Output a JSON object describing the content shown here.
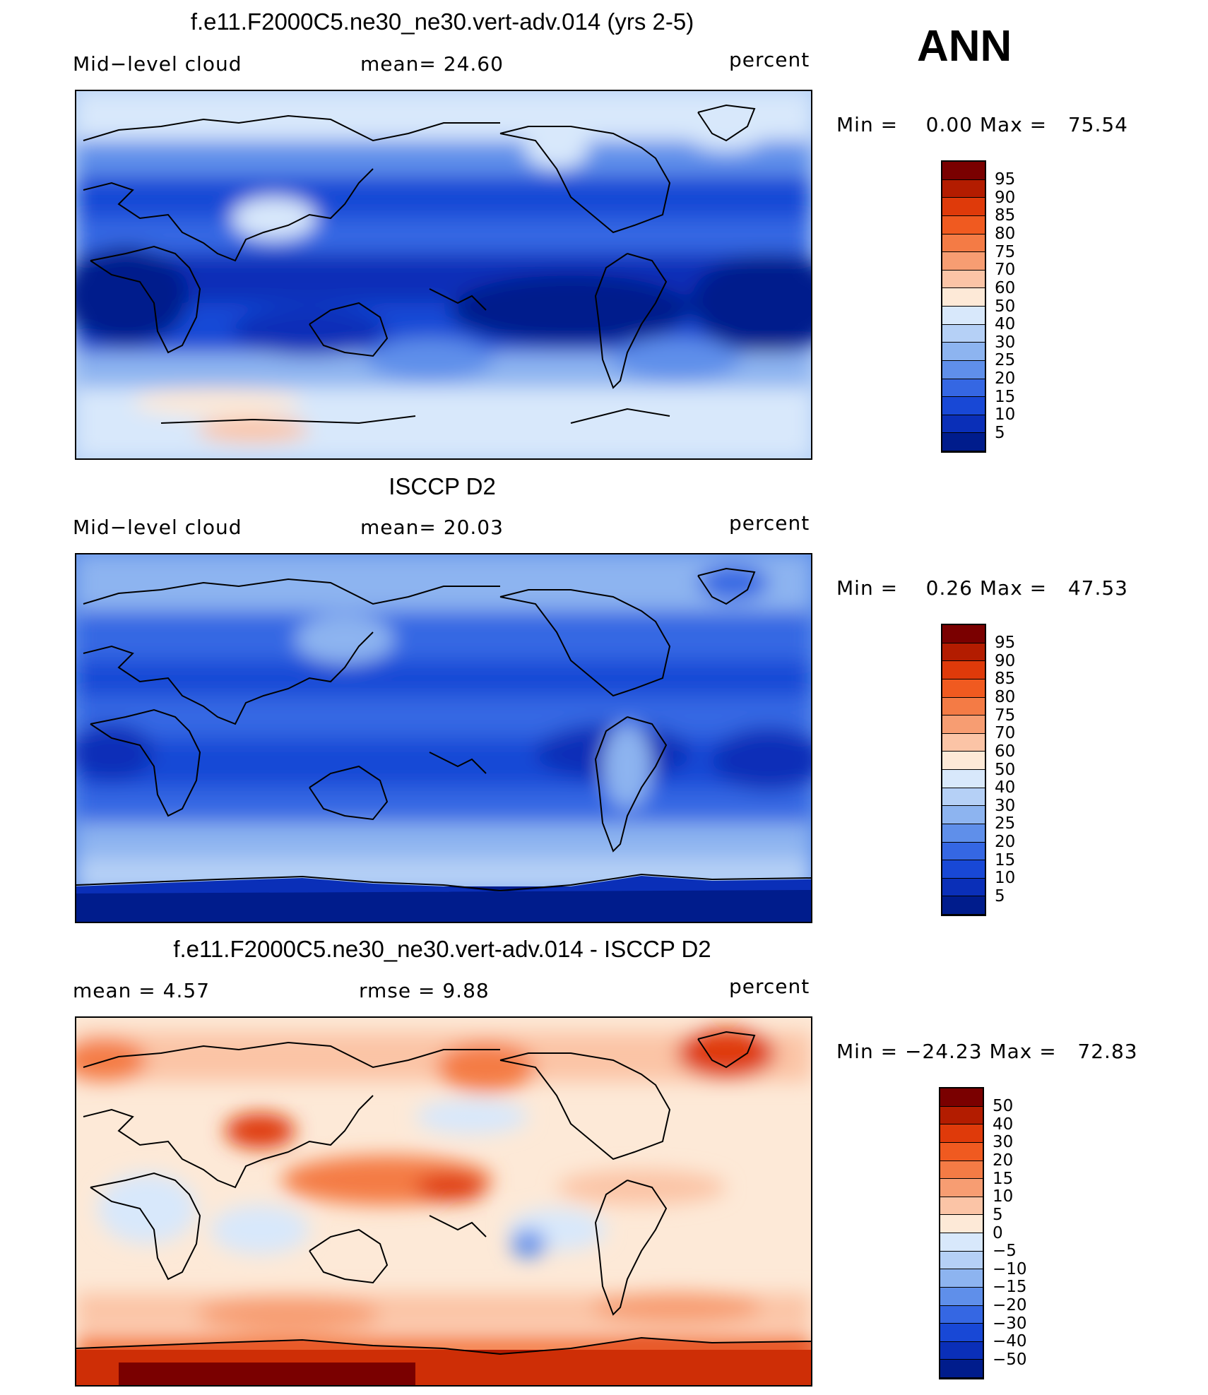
{
  "season": "ANN",
  "panels": [
    {
      "id": "model",
      "title": "f.e11.F2000C5.ne30_ne30.vert-adv.014 (yrs 2-5)",
      "left_label": "Mid−level cloud",
      "center_label": "mean=   24.60",
      "right_label": "percent",
      "minmax": "Min =    0.00 Max =   75.54"
    },
    {
      "id": "obs",
      "title": "ISCCP D2",
      "left_label": "Mid−level cloud",
      "center_label": "mean=   20.03",
      "right_label": "percent",
      "minmax": "Min =    0.26 Max =   47.53"
    },
    {
      "id": "diff",
      "title": "f.e11.F2000C5.ne30_ne30.vert-adv.014 - ISCCP D2",
      "left_label": "mean =    4.57",
      "center_label": "rmse =    9.88",
      "right_label": "percent",
      "minmax": "Min = −24.23 Max =   72.83"
    }
  ],
  "colorbars": {
    "cloud": {
      "labels": [
        "95",
        "90",
        "85",
        "80",
        "75",
        "70",
        "60",
        "50",
        "40",
        "30",
        "25",
        "20",
        "15",
        "10",
        "5"
      ],
      "colors": [
        "#7a0000",
        "#b31c00",
        "#df3a0a",
        "#f05a20",
        "#f47b45",
        "#f79d72",
        "#fbc4a6",
        "#fde9d7",
        "#d8e8fb",
        "#b5d0f6",
        "#8db4f0",
        "#5f8fea",
        "#3567e3",
        "#1848d6",
        "#0a2fb8",
        "#001c8c"
      ]
    },
    "diff": {
      "labels": [
        "50",
        "40",
        "30",
        "20",
        "15",
        "10",
        "5",
        "0",
        "−5",
        "−10",
        "−15",
        "−20",
        "−30",
        "−40",
        "−50"
      ],
      "colors": [
        "#7a0000",
        "#b31c00",
        "#df3a0a",
        "#f05a20",
        "#f47b45",
        "#f79d72",
        "#fbc4a6",
        "#fde9d7",
        "#d8e8fb",
        "#b5d0f6",
        "#8db4f0",
        "#5f8fea",
        "#3567e3",
        "#1848d6",
        "#0a2fb8",
        "#001c8c"
      ]
    }
  }
}
